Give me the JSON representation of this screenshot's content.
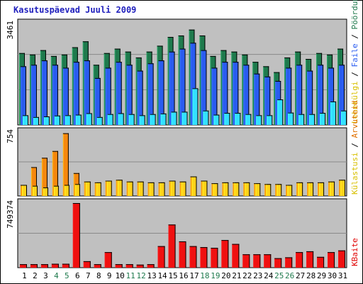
{
  "title": "Kasutuspäevad Juuli 2009",
  "colors": {
    "panel_bg": "#c0c0c0",
    "grid": "#8a8a8a",
    "border": "#000000",
    "weekday_label": "#000000",
    "weekend_label": "#1f7a4d",
    "visits": "#1f7a4d",
    "pages": "#2a5cf0",
    "files": "#2a5cf0",
    "hits": "#1e6ff0",
    "hits_light": "#33e0ff",
    "sites": "#f5880e",
    "visitors": "#ffd21a",
    "kbytes": "#f01010",
    "title": "#1f1fbd",
    "label_orange": "#e07000",
    "label_yellow": "#d8c000",
    "label_blue": "#2a5cf0",
    "label_green": "#1f7a4d",
    "label_red": "#e00000"
  },
  "chart_data": [
    {
      "type": "bar",
      "title": "Kasutuspäevad Juuli 2009",
      "categories": [
        "1",
        "2",
        "3",
        "4",
        "5",
        "6",
        "7",
        "8",
        "9",
        "10",
        "11",
        "12",
        "13",
        "14",
        "15",
        "16",
        "17",
        "18",
        "19",
        "20",
        "21",
        "22",
        "23",
        "24",
        "25",
        "26",
        "27",
        "28",
        "29",
        "30",
        "31"
      ],
      "weekend_days": [
        "4",
        "5",
        "11",
        "12",
        "18",
        "19",
        "25",
        "26"
      ],
      "ylim": [
        0,
        3461
      ],
      "y_max_label": "3461",
      "side_label": [
        "Pöördumisi",
        "Faile",
        "Lehekülgi"
      ],
      "series": [
        {
          "name": "Pöördumisi",
          "values": [
            2450,
            2400,
            2550,
            2350,
            2400,
            2650,
            2850,
            2050,
            2450,
            2600,
            2500,
            2300,
            2500,
            2700,
            3000,
            3050,
            3250,
            3050,
            2350,
            2550,
            2500,
            2400,
            2150,
            2000,
            1800,
            2300,
            2500,
            2250,
            2450,
            2400,
            2600
          ]
        },
        {
          "name": "Faile",
          "values": [
            2000,
            2050,
            2200,
            2050,
            1950,
            2150,
            2200,
            1600,
            1950,
            2150,
            2050,
            1850,
            2100,
            2200,
            2500,
            2600,
            2800,
            2550,
            1950,
            2150,
            2150,
            2050,
            1750,
            1650,
            1500,
            1950,
            2050,
            1850,
            2050,
            1950,
            2050
          ]
        },
        {
          "name": "Lehekülgi",
          "values": [
            330,
            270,
            290,
            320,
            330,
            350,
            400,
            270,
            370,
            400,
            370,
            330,
            370,
            390,
            450,
            450,
            1250,
            490,
            350,
            410,
            410,
            370,
            330,
            330,
            870,
            420,
            370,
            370,
            410,
            800,
            490
          ]
        }
      ]
    },
    {
      "type": "bar",
      "categories": [
        "1",
        "2",
        "3",
        "4",
        "5",
        "6",
        "7",
        "8",
        "9",
        "10",
        "11",
        "12",
        "13",
        "14",
        "15",
        "16",
        "17",
        "18",
        "19",
        "20",
        "21",
        "22",
        "23",
        "24",
        "25",
        "26",
        "27",
        "28",
        "29",
        "30",
        "31"
      ],
      "ylim": [
        0,
        754
      ],
      "y_max_label": "754",
      "side_label": [
        "Arvuteid",
        "Külastusi"
      ],
      "series": [
        {
          "name": "Arvuteid",
          "values": [
            130,
            340,
            450,
            530,
            740,
            270,
            170,
            160,
            180,
            190,
            170,
            170,
            160,
            160,
            180,
            170,
            230,
            180,
            150,
            160,
            160,
            160,
            150,
            140,
            140,
            130,
            160,
            160,
            160,
            170,
            190
          ]
        },
        {
          "name": "Külastusi",
          "values": [
            130,
            120,
            100,
            120,
            130,
            140,
            170,
            160,
            180,
            190,
            170,
            170,
            160,
            160,
            180,
            170,
            230,
            180,
            150,
            160,
            160,
            160,
            150,
            140,
            140,
            130,
            160,
            160,
            160,
            170,
            190
          ]
        }
      ]
    },
    {
      "type": "bar",
      "categories": [
        "1",
        "2",
        "3",
        "4",
        "5",
        "6",
        "7",
        "8",
        "9",
        "10",
        "11",
        "12",
        "13",
        "14",
        "15",
        "16",
        "17",
        "18",
        "19",
        "20",
        "21",
        "22",
        "23",
        "24",
        "25",
        "26",
        "27",
        "28",
        "29",
        "30",
        "31"
      ],
      "ylim": [
        0,
        749374
      ],
      "y_max_label": "749374",
      "side_label": [
        "KBaite"
      ],
      "series": [
        {
          "name": "KBaite",
          "values": [
            40000,
            40000,
            40000,
            45000,
            45000,
            749374,
            75000,
            40000,
            180000,
            40000,
            40000,
            35000,
            40000,
            250000,
            500000,
            305000,
            250000,
            238000,
            230000,
            320000,
            275000,
            155000,
            155000,
            155000,
            110000,
            120000,
            180000,
            190000,
            125000,
            180000,
            200000
          ]
        }
      ]
    }
  ]
}
